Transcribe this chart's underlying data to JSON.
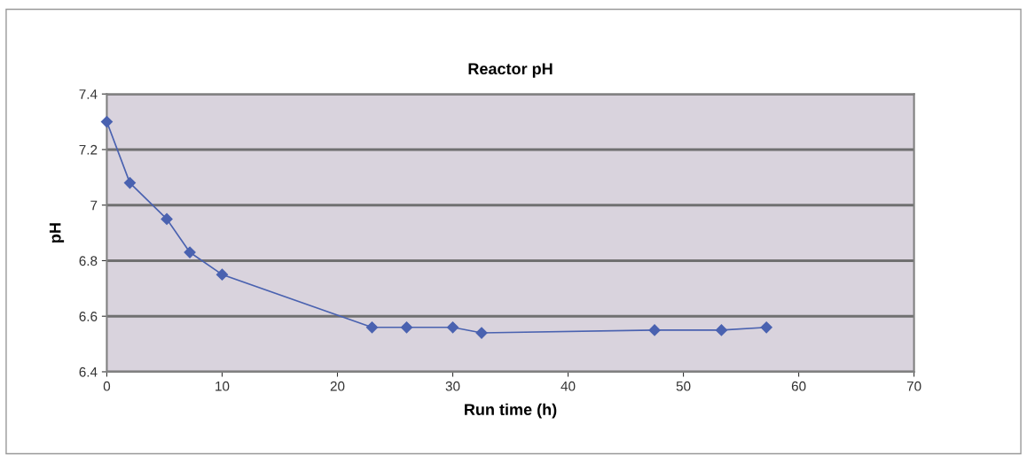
{
  "chart_data": {
    "type": "line",
    "title": "Reactor pH",
    "xlabel": "Run time (h)",
    "ylabel": "pH",
    "x": [
      0,
      2,
      5.2,
      7.2,
      10,
      23,
      26,
      30,
      32.5,
      47.5,
      53.3,
      57.2
    ],
    "series": [
      {
        "color": "#4a62b0",
        "values": [
          7.3,
          7.08,
          6.95,
          6.83,
          6.75,
          6.56,
          6.56,
          6.56,
          6.54,
          6.55,
          6.55,
          6.56
        ]
      }
    ],
    "xlim": [
      0,
      70
    ],
    "xticks": [
      0,
      10,
      20,
      30,
      40,
      50,
      60,
      70
    ],
    "ylim": [
      6.4,
      7.4
    ],
    "yticks": [
      {
        "value": 6.4,
        "label": "6.4"
      },
      {
        "value": 6.6,
        "label": "6.6"
      },
      {
        "value": 6.8,
        "label": "6.8"
      },
      {
        "value": 7,
        "label": "7"
      },
      {
        "value": 7.2,
        "label": "7.2"
      },
      {
        "value": 7.4,
        "label": "7.4"
      }
    ],
    "grid": "y",
    "marker": "diamond",
    "line_style": "solid"
  }
}
